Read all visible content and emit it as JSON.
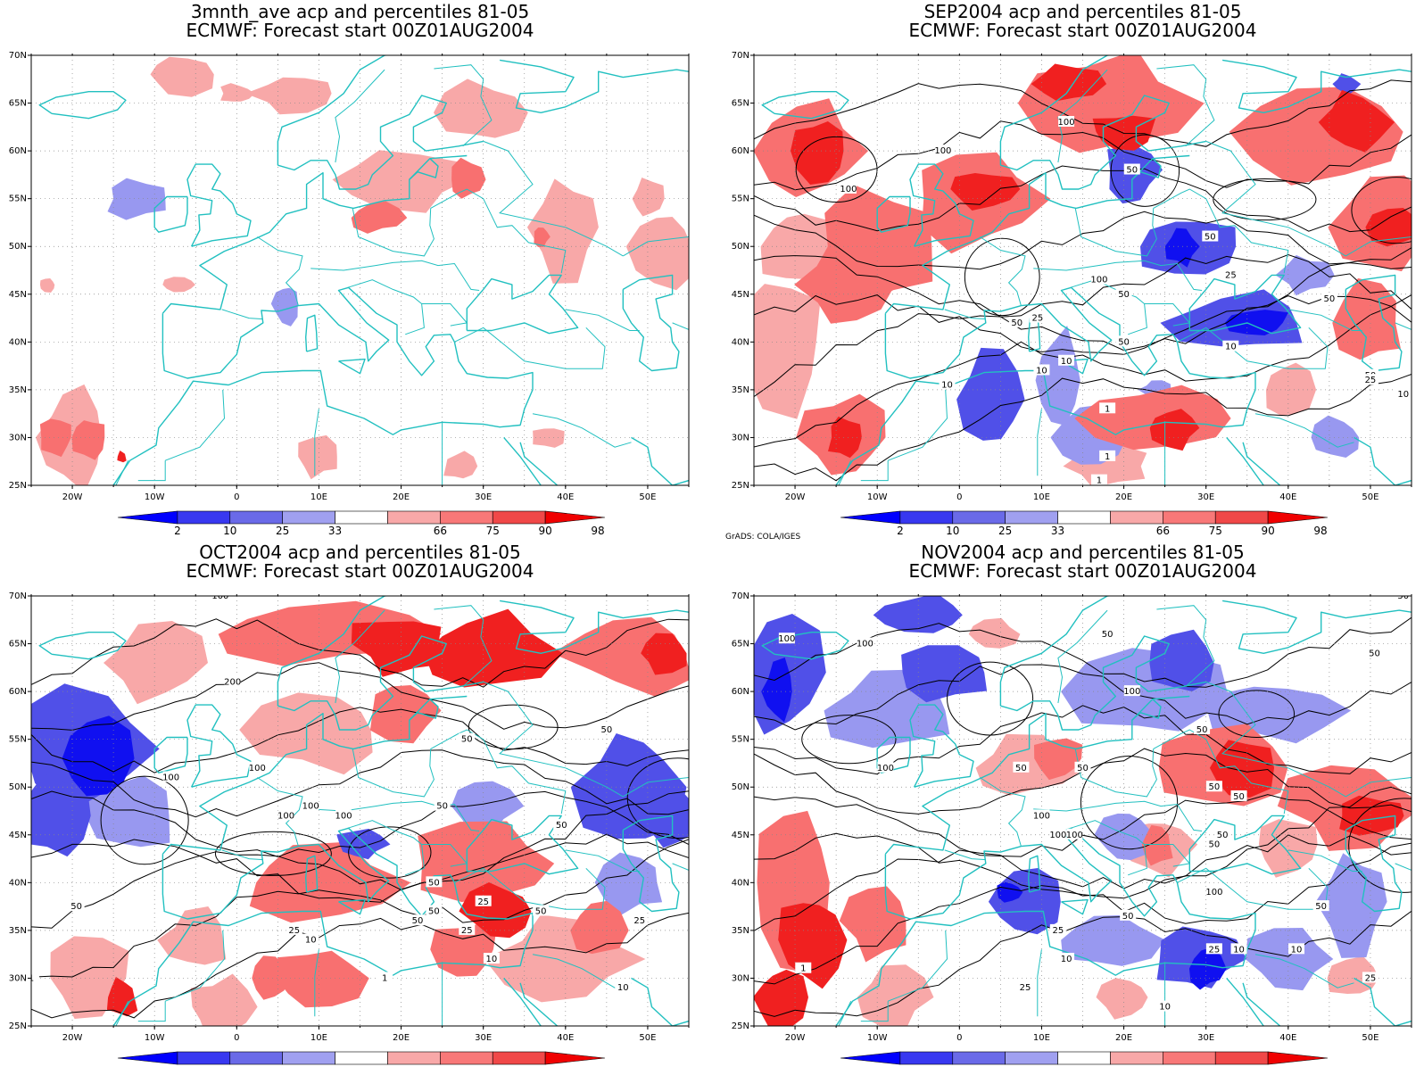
{
  "colors": {
    "coast": "#22c0c0",
    "grid": "#888888",
    "contour": "#000000",
    "frame": "#000000",
    "anomaly_scale": [
      "#1010f0",
      "#5050e8",
      "#9898f0",
      "#ffffff",
      "#f8a8a8",
      "#f87070",
      "#f02020"
    ]
  },
  "axes": {
    "lon_labels": [
      "20W",
      "10W",
      "0",
      "10E",
      "20E",
      "30E",
      "40E",
      "50E"
    ],
    "lat_labels": [
      "70N",
      "65N",
      "60N",
      "55N",
      "50N",
      "45N",
      "40N",
      "35N",
      "30N",
      "25N"
    ]
  },
  "colorbar": {
    "labels": [
      "2",
      "10",
      "25",
      "33",
      "66",
      "75",
      "90",
      "98"
    ],
    "colors": [
      "#0000ff",
      "#3838f0",
      "#6a6ae8",
      "#a0a0f0",
      "#ffffff",
      "#f8a8a8",
      "#f87878",
      "#f04848",
      "#f00000"
    ]
  },
  "credit": "GrADS: COLA/IGES",
  "panels": [
    {
      "id": "avg",
      "title_line1": "3mnth_ave acp and percentiles 81-05",
      "title_line2": "ECMWF: Forecast start 00Z01AUG2004",
      "show_credit": false,
      "has_contours": false,
      "contour_labels": []
    },
    {
      "id": "sep",
      "title_line1": "SEP2004 acp and percentiles 81-05",
      "title_line2": "ECMWF: Forecast start 00Z01AUG2004",
      "show_credit": true,
      "has_contours": true,
      "contour_labels": [
        "100",
        "100",
        "100",
        "100",
        "50",
        "50",
        "50",
        "25",
        "50",
        "50",
        "25",
        "50",
        "10",
        "10",
        "10",
        "1",
        "1",
        "1",
        "50",
        "25",
        "10",
        "10"
      ]
    },
    {
      "id": "oct",
      "title_line1": "OCT2004 acp and percentiles 81-05",
      "title_line2": "ECMWF: Forecast start 00Z01AUG2004",
      "show_credit": true,
      "has_contours": true,
      "contour_labels": [
        "100",
        "200",
        "100",
        "100",
        "100",
        "100",
        "100",
        "50",
        "50",
        "50",
        "50",
        "25",
        "50",
        "50",
        "50",
        "50",
        "50",
        "25",
        "10",
        "25",
        "10",
        "1",
        "10",
        "25",
        "1"
      ]
    },
    {
      "id": "nov",
      "title_line1": "NOV2004 acp and percentiles 81-05",
      "title_line2": "ECMWF: Forecast start 00Z01AUG2004",
      "show_credit": true,
      "has_contours": true,
      "contour_labels": [
        "50",
        "100",
        "100",
        "50",
        "100",
        "50",
        "50",
        "50",
        "50",
        "100",
        "50",
        "50",
        "100",
        "100",
        "100",
        "50",
        "50",
        "100",
        "50",
        "50",
        "25",
        "10",
        "25",
        "10",
        "1",
        "25",
        "10",
        "25",
        "10"
      ]
    }
  ]
}
